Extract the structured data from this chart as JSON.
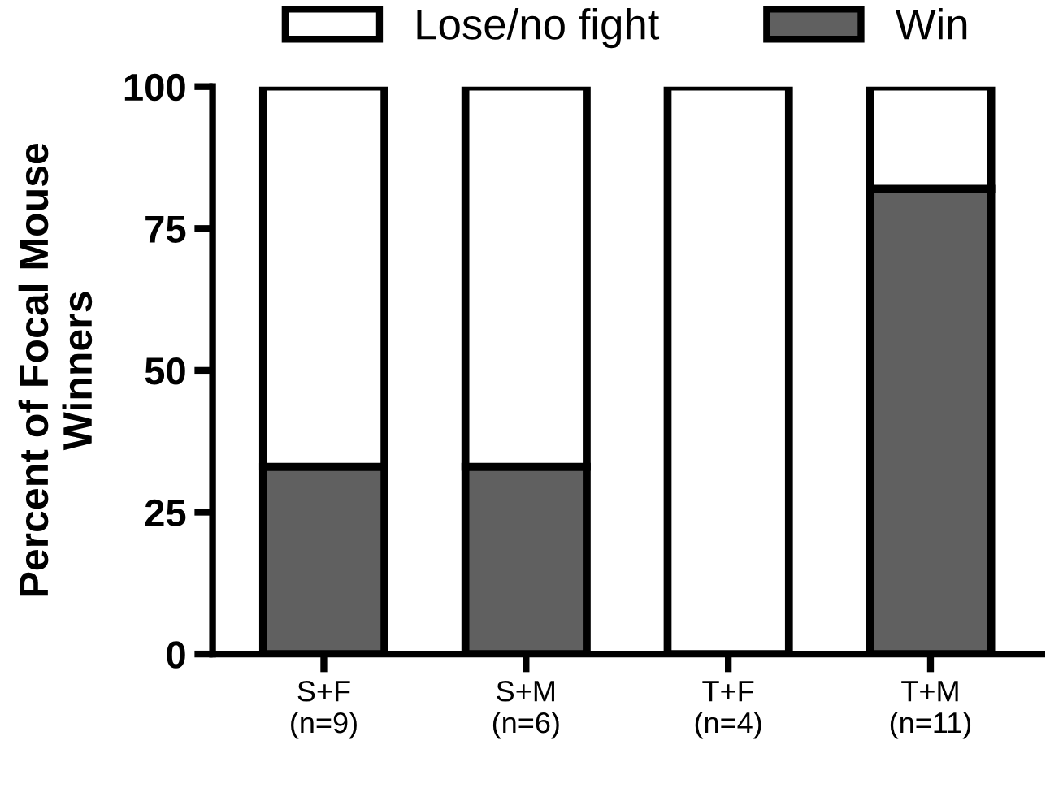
{
  "chart_data": {
    "type": "bar",
    "stacked": true,
    "ylabel": "Percent of Focal Mouse\nWinners",
    "categories": [
      "S+F\n(n=9)",
      "S+M\n(n=6)",
      "T+F\n(n=4)",
      "T+M\n(n=11)"
    ],
    "series": [
      {
        "name": "Win",
        "color": "#606060",
        "values": [
          33,
          33,
          0,
          82
        ]
      },
      {
        "name": "Lose/no fight",
        "color": "#ffffff",
        "values": [
          67,
          67,
          100,
          18
        ]
      }
    ],
    "ylim": [
      0,
      100
    ],
    "yticks": [
      0,
      25,
      50,
      75,
      100
    ],
    "grid": false,
    "legend": "top"
  }
}
